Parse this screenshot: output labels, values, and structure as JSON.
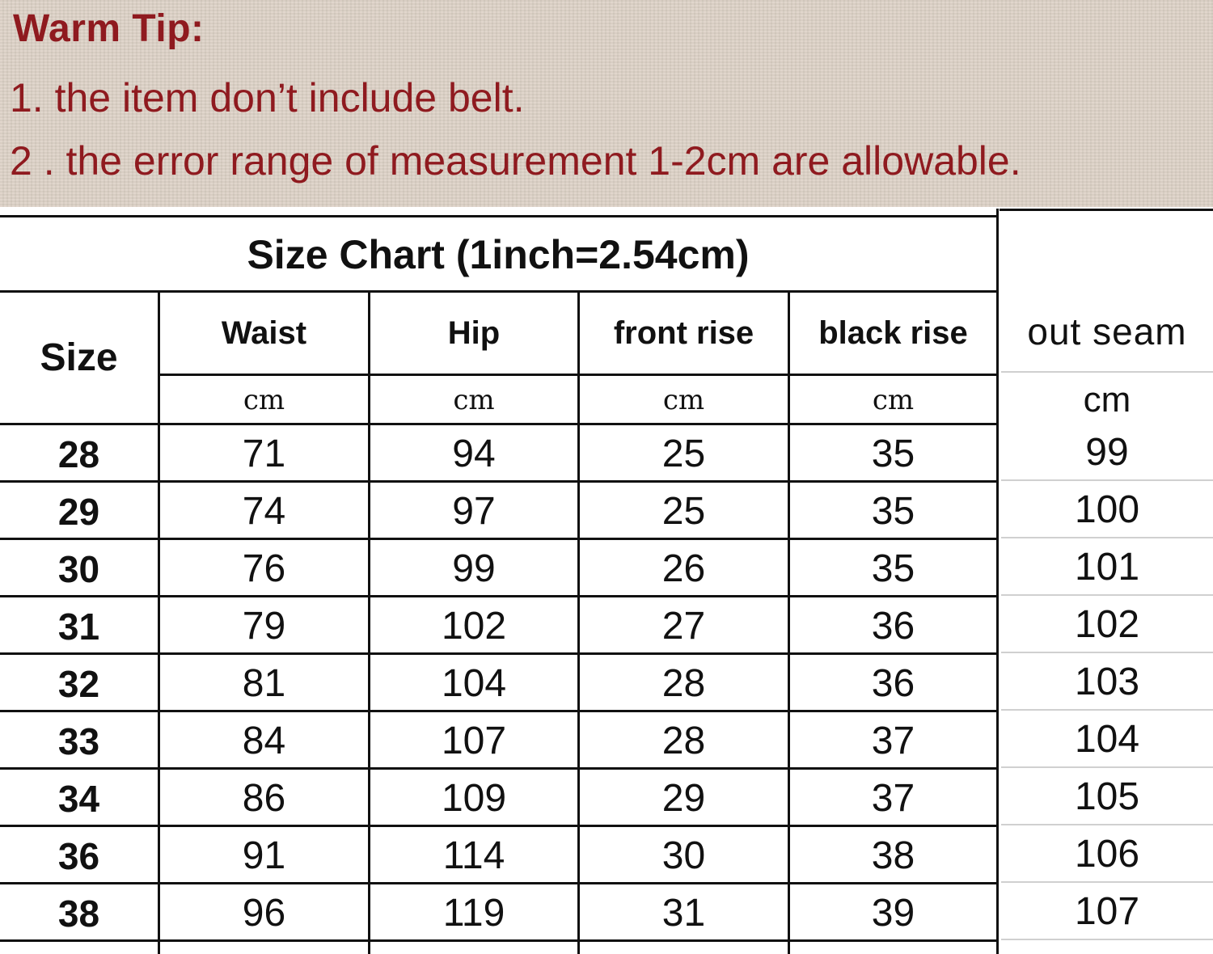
{
  "warm_tip": {
    "title": "Warm Tip:",
    "line1": "1.  the item don’t include belt.",
    "line2": "2 . the error range of measurement 1-2cm are allowable."
  },
  "size_chart": {
    "title": "Size Chart (1inch=2.54cm)",
    "headers": {
      "size": "Size",
      "waist": "Waist",
      "hip": "Hip",
      "front_rise": "front rise",
      "back_rise": "black rise",
      "out_seam": "out seam"
    },
    "unit": "cm",
    "rows": [
      {
        "size": "28",
        "waist": "71",
        "hip": "94",
        "front_rise": "25",
        "back_rise": "35",
        "out_seam": "99"
      },
      {
        "size": "29",
        "waist": "74",
        "hip": "97",
        "front_rise": "25",
        "back_rise": "35",
        "out_seam": "100"
      },
      {
        "size": "30",
        "waist": "76",
        "hip": "99",
        "front_rise": "26",
        "back_rise": "35",
        "out_seam": "101"
      },
      {
        "size": "31",
        "waist": "79",
        "hip": "102",
        "front_rise": "27",
        "back_rise": "36",
        "out_seam": "102"
      },
      {
        "size": "32",
        "waist": "81",
        "hip": "104",
        "front_rise": "28",
        "back_rise": "36",
        "out_seam": "103"
      },
      {
        "size": "33",
        "waist": "84",
        "hip": "107",
        "front_rise": "28",
        "back_rise": "37",
        "out_seam": "104"
      },
      {
        "size": "34",
        "waist": "86",
        "hip": "109",
        "front_rise": "29",
        "back_rise": "37",
        "out_seam": "105"
      },
      {
        "size": "36",
        "waist": "91",
        "hip": "114",
        "front_rise": "30",
        "back_rise": "38",
        "out_seam": "106"
      },
      {
        "size": "38",
        "waist": "96",
        "hip": "119",
        "front_rise": "31",
        "back_rise": "39",
        "out_seam": "107"
      }
    ]
  },
  "colors": {
    "tip_text": "#8f1a1f",
    "tip_background": "#ddd2c6",
    "grid_line": "#111111"
  }
}
